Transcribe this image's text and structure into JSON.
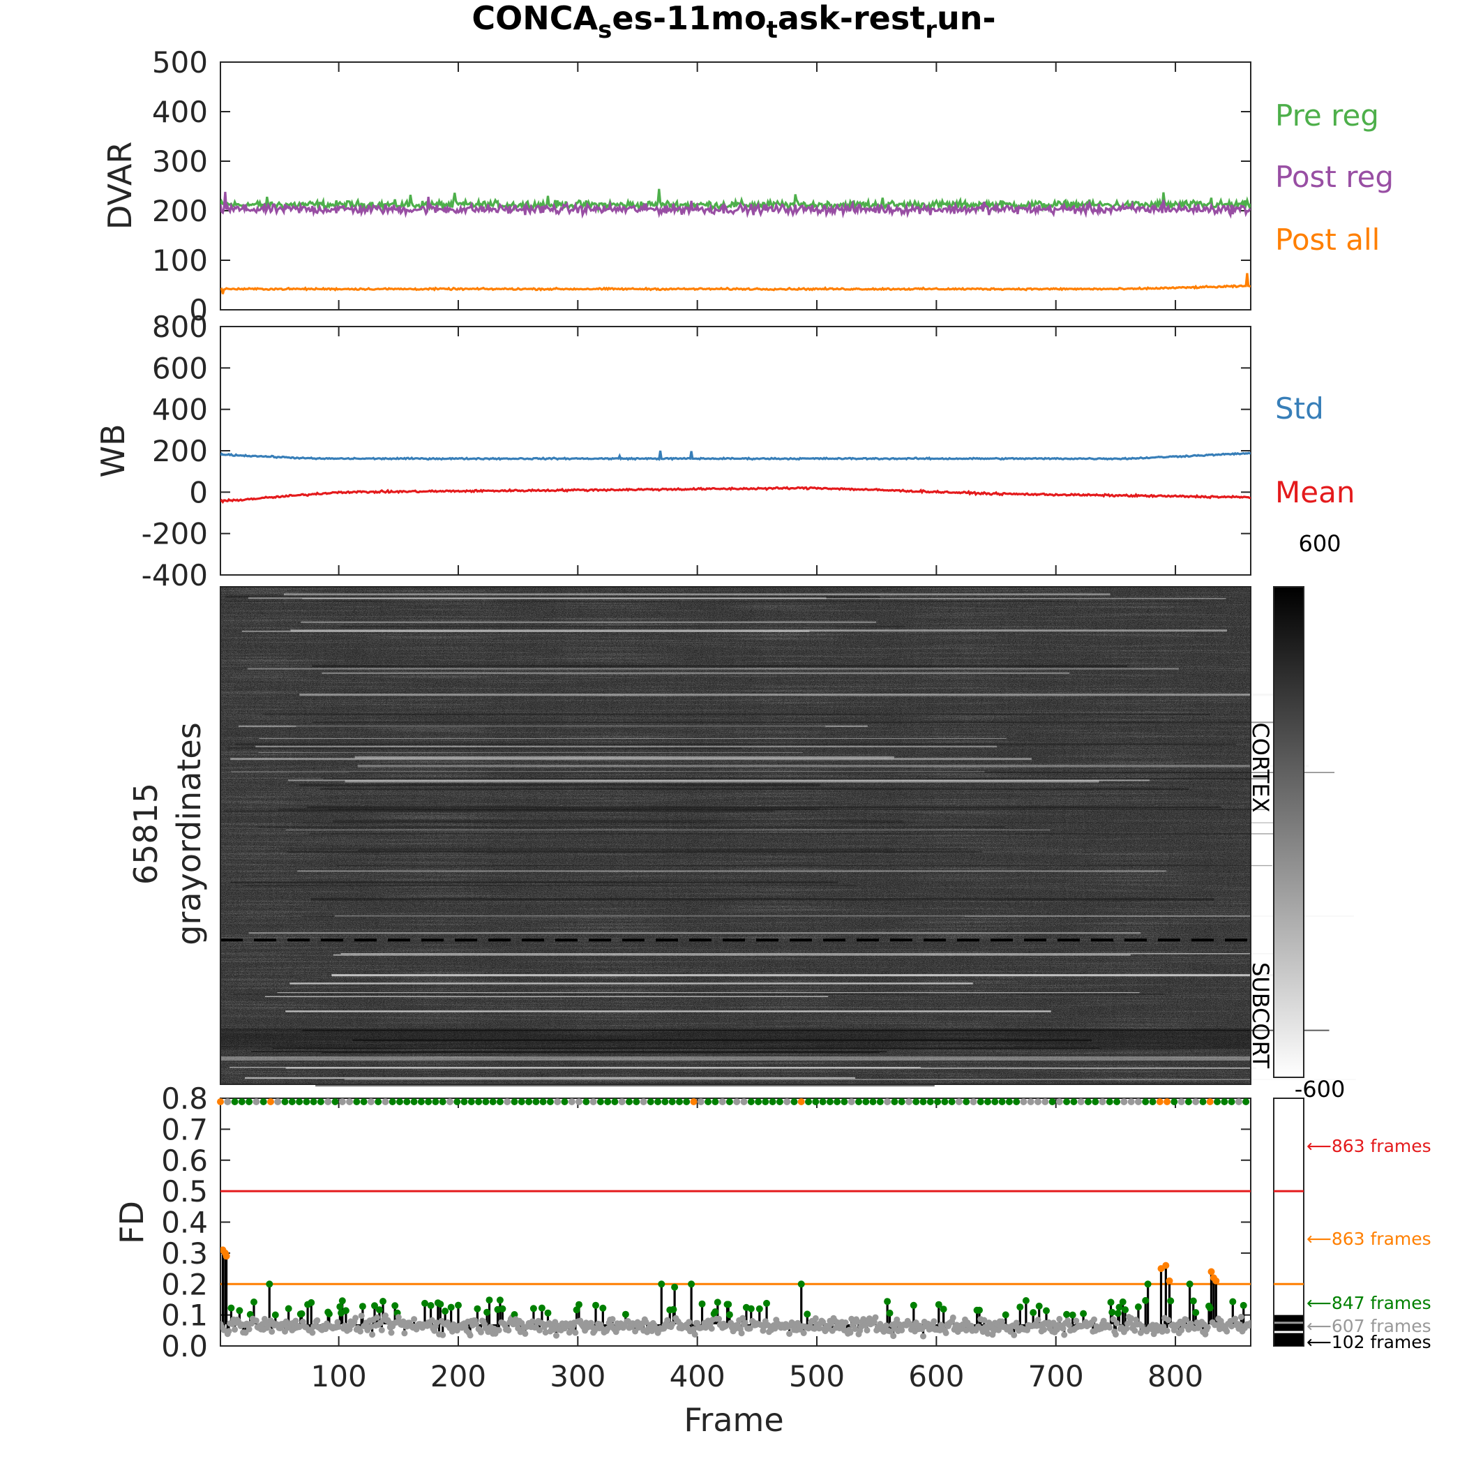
{
  "title": "CONCA",
  "title_parts": [
    {
      "text": "CONCA",
      "sub": false
    },
    {
      "text": "s",
      "sub": true
    },
    {
      "text": "es-11mo",
      "sub": false
    },
    {
      "text": "t",
      "sub": true
    },
    {
      "text": "ask-rest",
      "sub": false
    },
    {
      "text": "r",
      "sub": true
    },
    {
      "text": "un-",
      "sub": false
    }
  ],
  "colors": {
    "pre_reg": "#4daf4a",
    "post_reg": "#984ea3",
    "post_all": "#ff7f00",
    "std": "#377eb8",
    "mean": "#e41a1c",
    "fd_red": "#e41a1c",
    "fd_orange": "#ff7f00",
    "fd_green": "#008000",
    "fd_gray": "#999999",
    "fd_black": "#000000"
  },
  "chart_data": [
    {
      "type": "line",
      "panel": "dvar",
      "ylabel": "DVAR",
      "xlim": [
        1,
        863
      ],
      "ylim": [
        0,
        500
      ],
      "yticks": [
        0,
        100,
        200,
        300,
        400,
        500
      ],
      "series": [
        {
          "name": "Pre reg",
          "color": "#4daf4a",
          "base": 212,
          "noise": 7,
          "spikes": [
            [
              40,
              228
            ],
            [
              160,
              232
            ],
            [
              197,
              236
            ],
            [
              275,
              230
            ],
            [
              368,
              244
            ],
            [
              482,
              233
            ],
            [
              555,
              226
            ],
            [
              790,
              237
            ],
            [
              830,
              226
            ]
          ]
        },
        {
          "name": "Post reg",
          "color": "#984ea3",
          "base": 203,
          "noise": 8,
          "spikes": [
            [
              5,
              238
            ],
            [
              175,
              228
            ],
            [
              395,
              220
            ],
            [
              640,
              218
            ],
            [
              790,
              222
            ]
          ]
        },
        {
          "name": "Post all",
          "color": "#ff7f00",
          "base": 42,
          "noise": 1.5,
          "spikes": [
            [
              3,
              32
            ],
            [
              860,
              74
            ]
          ],
          "drift_end": 48
        }
      ],
      "legend": [
        "Pre reg",
        "Post reg",
        "Post all"
      ]
    },
    {
      "type": "line",
      "panel": "wb",
      "ylabel": "WB",
      "xlim": [
        1,
        863
      ],
      "ylim": [
        -400,
        800
      ],
      "yticks": [
        -400,
        -200,
        0,
        200,
        400,
        600,
        800
      ],
      "series": [
        {
          "name": "Std",
          "color": "#377eb8",
          "base": 162,
          "noise": 3,
          "start": 182,
          "end": 188,
          "spikes": [
            [
              369,
              200
            ],
            [
              395,
              198
            ],
            [
              335,
              175
            ]
          ]
        },
        {
          "name": "Mean",
          "color": "#e41a1c",
          "start": -45,
          "mid": 20,
          "end": -25,
          "noise": 4
        }
      ],
      "legend": [
        "Std",
        "Mean"
      ]
    },
    {
      "type": "heatmap",
      "panel": "grayordinates",
      "ylabel_lines": [
        "65815",
        "grayordinates"
      ],
      "xlim": [
        1,
        863
      ],
      "color_range": [
        -600,
        600
      ],
      "colorbar_labels": {
        "max": "600",
        "min": "-600"
      },
      "sections": [
        "CORTEX",
        "SUBCORT"
      ],
      "cortex_fraction": 0.71
    },
    {
      "type": "scatter",
      "panel": "fd",
      "ylabel": "FD",
      "xlabel": "Frame",
      "xlim": [
        1,
        863
      ],
      "ylim": [
        0,
        0.8
      ],
      "yticks": [
        "0.0",
        "0.1",
        "0.2",
        "0.3",
        "0.4",
        "0.5",
        "0.6",
        "0.7",
        "0.8"
      ],
      "xticks": [
        100,
        200,
        300,
        400,
        500,
        600,
        700,
        800
      ],
      "thresholds": [
        {
          "value": 0.5,
          "color": "#e41a1c",
          "frames_label": "863 frames"
        },
        {
          "value": 0.2,
          "color": "#ff7f00",
          "frames_label": "863 frames"
        },
        {
          "value": 0.1,
          "color": "#008000",
          "frames_label": "847 frames"
        },
        {
          "value": 0.07,
          "color": "#999999",
          "frames_label": "607 frames"
        },
        {
          "value": 0.04,
          "color": "#000000",
          "frames_label": "102 frames"
        }
      ],
      "spikes": [
        [
          3,
          0.31
        ],
        [
          5,
          0.3
        ],
        [
          6,
          0.29
        ],
        [
          42,
          0.2
        ],
        [
          370,
          0.2
        ],
        [
          381,
          0.19
        ],
        [
          395,
          0.2
        ],
        [
          487,
          0.2
        ],
        [
          777,
          0.2
        ],
        [
          788,
          0.25
        ],
        [
          792,
          0.26
        ],
        [
          795,
          0.21
        ],
        [
          812,
          0.2
        ],
        [
          830,
          0.24
        ],
        [
          832,
          0.22
        ],
        [
          834,
          0.21
        ]
      ],
      "top_markers_orange": [
        3,
        42,
        370,
        395,
        487,
        788,
        792,
        795,
        830
      ]
    }
  ]
}
